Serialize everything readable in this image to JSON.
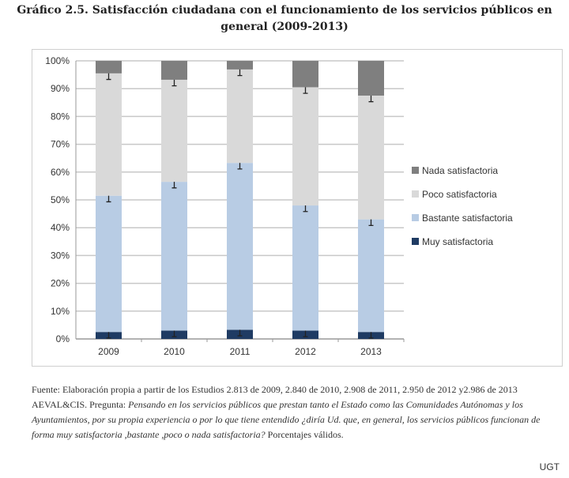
{
  "title_line1": "Gráfico 2.5. Satisfacción ciudadana con el funcionamiento de los servicios públicos en",
  "title_line2": "general (2009-2013)",
  "chart_data": {
    "type": "bar",
    "stacked": true,
    "categories": [
      "2009",
      "2010",
      "2011",
      "2012",
      "2013"
    ],
    "series": [
      {
        "name": "Muy satisfactoria",
        "color": "#1f3b63",
        "values": [
          2.5,
          3,
          3.3,
          3,
          2.5
        ]
      },
      {
        "name": "Bastante satisfactoria",
        "color": "#b8cce4",
        "values": [
          49,
          53.5,
          60,
          45,
          40.5
        ]
      },
      {
        "name": "Poco satisfactoria",
        "color": "#d9d9d9",
        "values": [
          44,
          36.7,
          33.6,
          42.5,
          44.5
        ]
      },
      {
        "name": "Nada satisfactoria",
        "color": "#7f7f7f",
        "values": [
          4.5,
          6.8,
          3.1,
          9.5,
          12.5
        ]
      }
    ],
    "error_bars": true,
    "yticks": [
      "0%",
      "10%",
      "20%",
      "30%",
      "40%",
      "50%",
      "60%",
      "70%",
      "80%",
      "90%",
      "100%"
    ],
    "ylim": [
      0,
      100
    ],
    "grid": true,
    "legend_position": "right"
  },
  "footer": {
    "source": "Fuente: Elaboración propia a partir de los Estudios 2.813 de 2009, 2.840 de 2010, 2.908 de 2011, 2.950 de 2012 y2.986 de 2013 AEVAL&CIS. Pregunta: ",
    "question": "Pensando en los servicios públicos que prestan tanto el Estado como las Comunidades Autónomas y los Ayuntamientos, por su propia experiencia o por lo que tiene entendido ¿diría Ud. que, en general, los servicios públicos funcionan de forma muy satisfactoria ,bastante ,poco o nada satisfactoria?",
    "note": " Porcentajes válidos."
  },
  "credit": "UGT"
}
